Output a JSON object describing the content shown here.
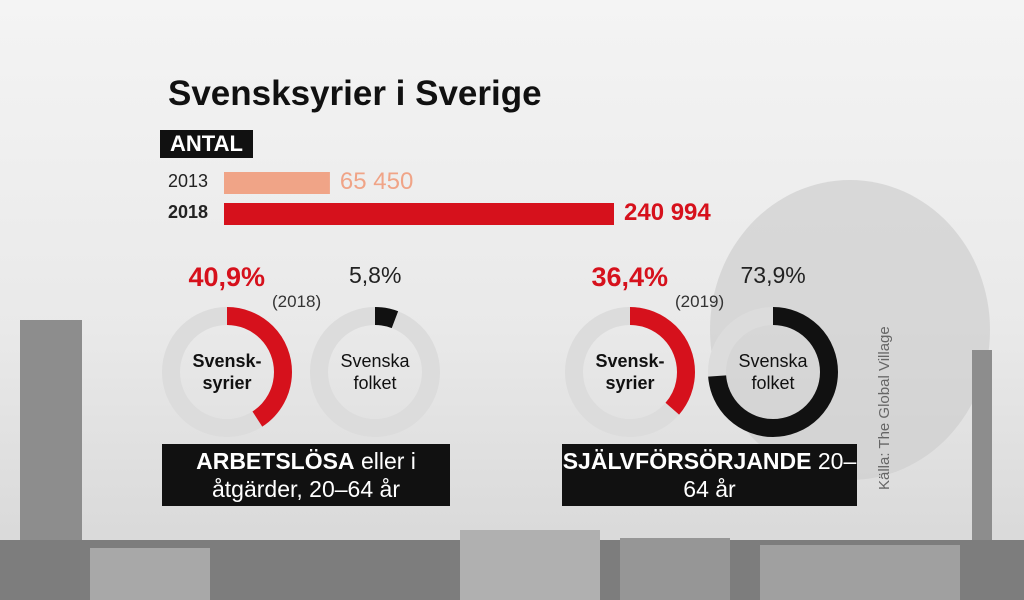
{
  "chart_data": [
    {
      "type": "bar",
      "title": "Svensksyrier i Sverige",
      "subtitle": "ANTAL",
      "categories": [
        "2013",
        "2018"
      ],
      "values": [
        65450,
        240994
      ],
      "value_labels": [
        "65 450",
        "240 994"
      ],
      "colors": [
        "#f0a487",
        "#d6111c"
      ]
    },
    {
      "type": "donut",
      "title": "ARBETSLÖSA",
      "subtitle": "eller i åtgärder, 20–64 år",
      "note": "(2018)",
      "series": [
        {
          "name": "Svensk-syrier",
          "color": "#d6111c",
          "values": [
            40.9
          ],
          "value_labels": [
            "40,9%"
          ]
        },
        {
          "name": "Svenska folket",
          "color": "#111111",
          "values": [
            5.8
          ],
          "value_labels": [
            "5,8%"
          ]
        }
      ]
    },
    {
      "type": "donut",
      "title": "SJÄLVFÖRSÖRJANDE",
      "subtitle": "20–64 år",
      "note": "(2019)",
      "series": [
        {
          "name": "Svensk-syrier",
          "color": "#d6111c",
          "values": [
            36.4
          ],
          "value_labels": [
            "36,4%"
          ]
        },
        {
          "name": "Svenska folket",
          "color": "#111111",
          "values": [
            73.9
          ],
          "value_labels": [
            "73,9%"
          ]
        }
      ]
    }
  ],
  "source": "Källa: The Global Village"
}
